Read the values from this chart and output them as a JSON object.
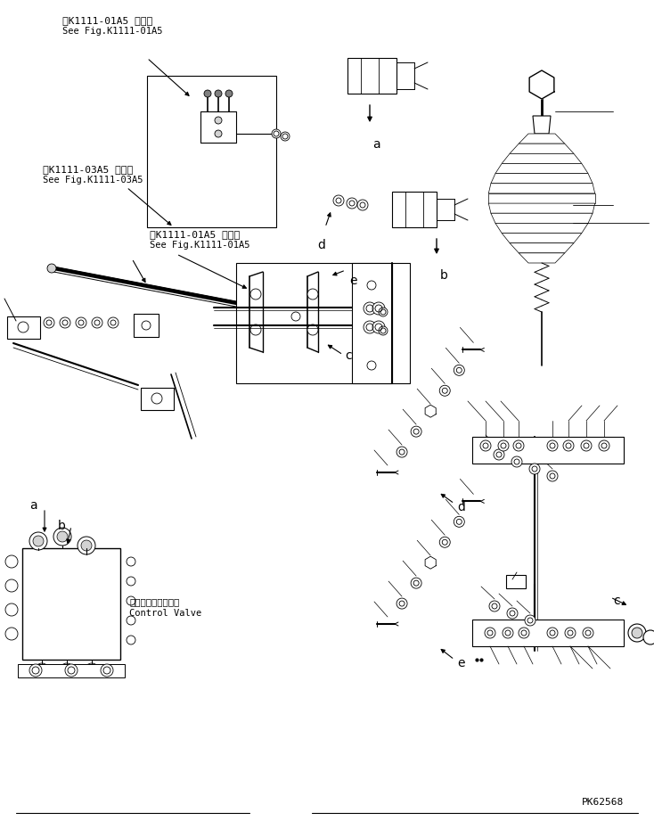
{
  "bg_color": "#ffffff",
  "line_color": "#000000",
  "fig_width": 7.34,
  "fig_height": 9.3,
  "dpi": 100,
  "part_number": "PK62568",
  "ref_text_1_line1": "第K1111-01A5 図参照",
  "ref_text_1_line2": "See Fig.K1111-01A5",
  "ref_text_2_line1": "第K1111-03A5 図参照",
  "ref_text_2_line2": "See Fig.K1111-03A5",
  "ref_text_3_line1": "第K1111-01A5 図参照",
  "ref_text_3_line2": "See Fig.K1111-01A5",
  "ctrl_valve_jp": "コントロールバルブ",
  "ctrl_valve_en": "Control Valve"
}
